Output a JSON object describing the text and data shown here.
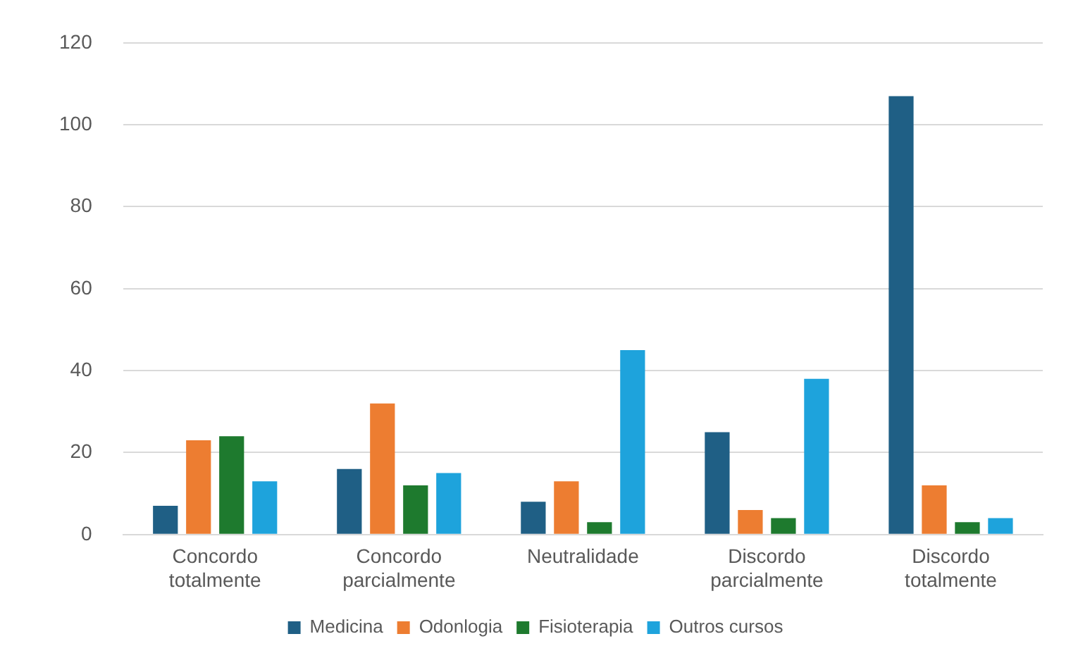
{
  "chart_data": {
    "type": "bar",
    "categories": [
      "Concordo totalmente",
      "Concordo parcialmente",
      "Neutralidade",
      "Discordo parcialmente",
      "Discordo totalmente"
    ],
    "series": [
      {
        "name": "Medicina",
        "color": "#1f5f85",
        "values": [
          7,
          16,
          8,
          25,
          107
        ]
      },
      {
        "name": "Odonlogia",
        "color": "#ed7d31",
        "values": [
          23,
          32,
          13,
          6,
          12
        ]
      },
      {
        "name": "Fisioterapia",
        "color": "#1e7a2e",
        "values": [
          24,
          12,
          3,
          4,
          3
        ]
      },
      {
        "name": "Outros cursos",
        "color": "#1ea3dc",
        "values": [
          13,
          15,
          45,
          38,
          4
        ]
      }
    ],
    "ylim": [
      0,
      120
    ],
    "yticks": [
      0,
      20,
      40,
      60,
      80,
      100,
      120
    ],
    "grid": "y",
    "legend": "bottom"
  }
}
